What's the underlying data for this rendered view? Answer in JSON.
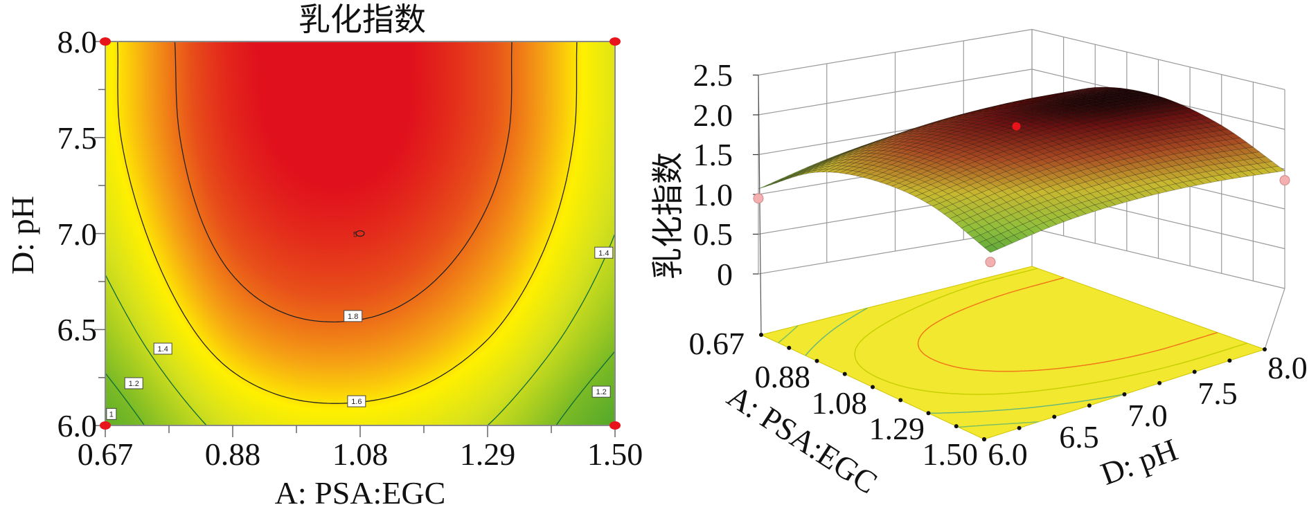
{
  "chart_data": [
    {
      "type": "contour",
      "title": "乳化指数",
      "xlabel": "A: PSA:EGC",
      "ylabel": "D: pH",
      "xlim": [
        0.67,
        1.5
      ],
      "ylim": [
        6.0,
        8.0
      ],
      "x_ticks": [
        "0.67",
        "0.88",
        "1.08",
        "1.29",
        "1.50"
      ],
      "y_ticks": [
        "6.0",
        "6.5",
        "7.0",
        "7.5",
        "8.0"
      ],
      "grid_x": [
        0.67,
        0.8775,
        1.085,
        1.2925,
        1.5
      ],
      "grid_y": [
        6.0,
        6.5,
        7.0,
        7.5,
        8.0
      ],
      "z": [
        [
          1.07,
          1.46,
          1.54,
          1.4,
          1.0
        ],
        [
          1.3,
          1.7,
          1.78,
          1.62,
          1.25
        ],
        [
          1.46,
          1.86,
          1.94,
          1.77,
          1.4
        ],
        [
          1.55,
          1.94,
          2.03,
          1.85,
          1.47
        ],
        [
          1.56,
          1.96,
          2.04,
          1.86,
          1.48
        ]
      ],
      "contour_levels": [
        1.0,
        1.2,
        1.4,
        1.6,
        1.8
      ],
      "contour_labels": [
        "1",
        "1.2",
        "1.4",
        "1.6",
        "1.8"
      ],
      "design_points": [
        {
          "x": 0.67,
          "y": 8.0
        },
        {
          "x": 1.5,
          "y": 8.0
        },
        {
          "x": 0.67,
          "y": 6.0
        },
        {
          "x": 1.5,
          "y": 6.0
        }
      ],
      "center_point": {
        "x": 1.085,
        "y": 7.0,
        "label": "5"
      },
      "grid": false,
      "colors": {
        "low": "#3f9e2e",
        "mid": "#fff000",
        "high": "#e0101c",
        "design_point": "#e8141c"
      }
    },
    {
      "type": "surface3d",
      "zlabel": "乳化指数",
      "xlabel": "A: PSA:EGC",
      "ylabel": "D: pH",
      "zlim": [
        0,
        2.5
      ],
      "z_ticks": [
        "0",
        "0.5",
        "1.0",
        "1.5",
        "2.0",
        "2.5"
      ],
      "x_ticks": [
        "0.67",
        "0.88",
        "1.08",
        "1.29",
        "1.50"
      ],
      "y_ticks": [
        "6.0",
        "6.5",
        "7.0",
        "7.5",
        "8.0"
      ],
      "design_points": [
        {
          "x": 0.67,
          "y": 6.0
        },
        {
          "x": 1.5,
          "y": 8.0
        },
        {
          "x": 1.5,
          "y": 6.0
        }
      ],
      "center_point": {
        "x": 1.085,
        "y": 7.0
      },
      "colors": {
        "floor": "#f2e830",
        "design_point": "#f4b0b0",
        "center_point": "#e8141c"
      }
    }
  ]
}
